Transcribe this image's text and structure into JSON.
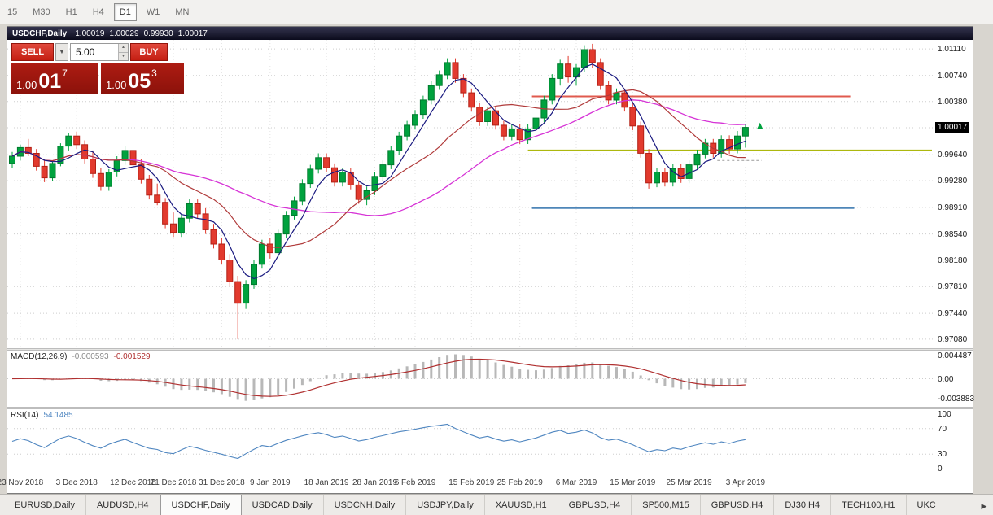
{
  "toolbar": {
    "timeframes": [
      "15",
      "M30",
      "H1",
      "H4",
      "D1",
      "W1",
      "MN"
    ],
    "active": "D1"
  },
  "icons": {
    "chevron_down": "▼",
    "spinner_up": "▲",
    "spinner_down": "▼",
    "scroll_right": "▶"
  },
  "chart_window": {
    "title": "USDCHF,Daily",
    "quote_open": "1.00019",
    "quote_high": "1.00029",
    "quote_low": "0.99930",
    "quote_close": "1.00017"
  },
  "trade_panel": {
    "sell_label": "SELL",
    "buy_label": "BUY",
    "volume": "5.00",
    "bid_base": "1.00",
    "bid_big": "01",
    "bid_sup": "7",
    "ask_base": "1.00",
    "ask_big": "05",
    "ask_sup": "3"
  },
  "macd_panel": {
    "label": "MACD(12,26,9)",
    "value_main": "-0.000593",
    "value_signal": "-0.001529"
  },
  "rsi_panel": {
    "label": "RSI(14)",
    "value": "54.1485"
  },
  "tab_bar": {
    "tabs": [
      "EURUSD,Daily",
      "AUDUSD,H4",
      "USDCHF,Daily",
      "USDCAD,Daily",
      "USDCNH,Daily",
      "USDJPY,Daily",
      "XAUUSD,H1",
      "GBPUSD,H4",
      "SP500,M15",
      "GBPUSD,H4",
      "DJ30,H4",
      "TECH100,H1",
      "UKC"
    ],
    "active_index": 2
  },
  "chart_data": {
    "type": "candlestick",
    "symbol": "USDCHF",
    "timeframe": "Daily",
    "values_are": "open,high,low,close",
    "colors": {
      "up": "#00A23E",
      "up_dark": "#007A2E",
      "down": "#E23A2E",
      "down_dark": "#B22015",
      "grid": "#cdcdcd",
      "macd_hist": "#b8b8b8",
      "macd_signal": "#b03030",
      "rsi": "#4F86C0"
    },
    "y_axis": {
      "min": 0.96955,
      "max": 1.01235,
      "labels": [
        "1.01110",
        "1.00740",
        "1.00380",
        "0.99640",
        "0.99280",
        "0.98910",
        "0.98540",
        "0.98180",
        "0.97810",
        "0.97440",
        "0.97080"
      ],
      "gridlines_extra": [
        1.00015
      ],
      "current_label": "1.00017"
    },
    "x_ticks": [
      {
        "bar": 1,
        "label": "23 Nov 2018"
      },
      {
        "bar": 8,
        "label": "3 Dec 2018"
      },
      {
        "bar": 15,
        "label": "12 Dec 2018"
      },
      {
        "bar": 20,
        "label": "21 Dec 2018"
      },
      {
        "bar": 26,
        "label": "31 Dec 2018"
      },
      {
        "bar": 32,
        "label": "9 Jan 2019"
      },
      {
        "bar": 39,
        "label": "18 Jan 2019"
      },
      {
        "bar": 45,
        "label": "28 Jan 2019"
      },
      {
        "bar": 50,
        "label": "6 Feb 2019"
      },
      {
        "bar": 57,
        "label": "15 Feb 2019"
      },
      {
        "bar": 63,
        "label": "25 Feb 2019"
      },
      {
        "bar": 70,
        "label": "6 Mar 2019"
      },
      {
        "bar": 77,
        "label": "15 Mar 2019"
      },
      {
        "bar": 84,
        "label": "25 Mar 2019"
      },
      {
        "bar": 91,
        "label": "3 Apr 2019"
      }
    ],
    "candles": [
      [
        0.9952,
        0.9968,
        0.9946,
        0.9962
      ],
      [
        0.9962,
        0.9978,
        0.9956,
        0.9974
      ],
      [
        0.9974,
        0.9986,
        0.9962,
        0.9966
      ],
      [
        0.9966,
        0.9972,
        0.9942,
        0.9948
      ],
      [
        0.9948,
        0.9958,
        0.9926,
        0.9932
      ],
      [
        0.9932,
        0.9956,
        0.9928,
        0.9952
      ],
      [
        0.9952,
        0.998,
        0.9948,
        0.9976
      ],
      [
        0.9976,
        0.9994,
        0.997,
        0.999
      ],
      [
        0.999,
        0.9996,
        0.9972,
        0.9978
      ],
      [
        0.9978,
        0.9984,
        0.9952,
        0.9958
      ],
      [
        0.9958,
        0.997,
        0.9932,
        0.9938
      ],
      [
        0.9938,
        0.9946,
        0.9914,
        0.992
      ],
      [
        0.992,
        0.9944,
        0.9914,
        0.994
      ],
      [
        0.994,
        0.9962,
        0.9934,
        0.9956
      ],
      [
        0.9956,
        0.9976,
        0.995,
        0.997
      ],
      [
        0.997,
        0.9976,
        0.9944,
        0.995
      ],
      [
        0.995,
        0.9958,
        0.9924,
        0.993
      ],
      [
        0.993,
        0.9936,
        0.9902,
        0.9908
      ],
      [
        0.9908,
        0.9924,
        0.9894,
        0.9898
      ],
      [
        0.9898,
        0.9904,
        0.9862,
        0.9868
      ],
      [
        0.9868,
        0.9884,
        0.985,
        0.9856
      ],
      [
        0.9856,
        0.9882,
        0.985,
        0.9876
      ],
      [
        0.9876,
        0.9902,
        0.987,
        0.9896
      ],
      [
        0.9896,
        0.9902,
        0.9876,
        0.9882
      ],
      [
        0.9882,
        0.989,
        0.9854,
        0.986
      ],
      [
        0.986,
        0.9868,
        0.9834,
        0.984
      ],
      [
        0.984,
        0.9848,
        0.9812,
        0.9818
      ],
      [
        0.9818,
        0.9826,
        0.9782,
        0.9788
      ],
      [
        0.9788,
        0.9796,
        0.9708,
        0.9758
      ],
      [
        0.9758,
        0.979,
        0.975,
        0.9784
      ],
      [
        0.9784,
        0.9818,
        0.9778,
        0.9812
      ],
      [
        0.9812,
        0.9846,
        0.9806,
        0.984
      ],
      [
        0.984,
        0.9848,
        0.982,
        0.9828
      ],
      [
        0.9828,
        0.986,
        0.9822,
        0.9854
      ],
      [
        0.9854,
        0.9886,
        0.9848,
        0.988
      ],
      [
        0.988,
        0.9906,
        0.9874,
        0.99
      ],
      [
        0.99,
        0.993,
        0.9894,
        0.9924
      ],
      [
        0.9924,
        0.995,
        0.9918,
        0.9944
      ],
      [
        0.9944,
        0.9966,
        0.9938,
        0.996
      ],
      [
        0.996,
        0.9966,
        0.994,
        0.9946
      ],
      [
        0.9946,
        0.9952,
        0.992,
        0.9926
      ],
      [
        0.9926,
        0.9946,
        0.992,
        0.994
      ],
      [
        0.994,
        0.9946,
        0.9916,
        0.9922
      ],
      [
        0.9922,
        0.9928,
        0.9896,
        0.9902
      ],
      [
        0.9902,
        0.992,
        0.9894,
        0.9914
      ],
      [
        0.9914,
        0.994,
        0.9908,
        0.9934
      ],
      [
        0.9934,
        0.9956,
        0.9928,
        0.995
      ],
      [
        0.995,
        0.9976,
        0.9944,
        0.997
      ],
      [
        0.997,
        0.9996,
        0.9964,
        0.999
      ],
      [
        0.999,
        1.0011,
        0.9984,
        1.0005
      ],
      [
        1.0005,
        1.0026,
        0.9999,
        1.002
      ],
      [
        1.002,
        1.0046,
        1.0014,
        1.004
      ],
      [
        1.004,
        1.0066,
        1.0034,
        1.006
      ],
      [
        1.006,
        1.0081,
        1.0054,
        1.0075
      ],
      [
        1.0075,
        1.0098,
        1.0069,
        1.0092
      ],
      [
        1.0092,
        1.0098,
        1.0064,
        1.007
      ],
      [
        1.007,
        1.0076,
        1.0044,
        1.005
      ],
      [
        1.005,
        1.0056,
        1.0024,
        1.003
      ],
      [
        1.003,
        1.0036,
        1.0004,
        1.001
      ],
      [
        1.001,
        1.0031,
        1.0004,
        1.0025
      ],
      [
        1.0025,
        1.0031,
        0.9999,
        1.0005
      ],
      [
        1.0005,
        1.0011,
        0.9984,
        0.999
      ],
      [
        0.999,
        1.0006,
        0.9984,
        1.0
      ],
      [
        1.0,
        1.0006,
        0.9979,
        0.9985
      ],
      [
        0.9985,
        1.0006,
        0.9979,
        1.0
      ],
      [
        1.0,
        1.0021,
        0.9994,
        1.0015
      ],
      [
        1.0015,
        1.0046,
        1.0009,
        1.004
      ],
      [
        1.004,
        1.0076,
        1.0034,
        1.007
      ],
      [
        1.007,
        1.0096,
        1.006,
        1.009
      ],
      [
        1.009,
        1.0101,
        1.0064,
        1.0072
      ],
      [
        1.0072,
        1.009,
        1.006,
        1.0085
      ],
      [
        1.0085,
        1.0116,
        1.0079,
        1.011
      ],
      [
        1.011,
        1.0118,
        1.0085,
        1.0092
      ],
      [
        1.0092,
        1.0098,
        1.0054,
        1.006
      ],
      [
        1.006,
        1.0066,
        1.0034,
        1.004
      ],
      [
        1.004,
        1.0056,
        1.0034,
        1.005
      ],
      [
        1.005,
        1.0056,
        1.0024,
        1.003
      ],
      [
        1.003,
        1.0036,
        0.9998,
        1.0004
      ],
      [
        1.0004,
        1.001,
        0.996,
        0.9966
      ],
      [
        0.9966,
        0.9972,
        0.9917,
        0.9925
      ],
      [
        0.9925,
        0.9946,
        0.9919,
        0.994
      ],
      [
        0.994,
        0.9946,
        0.992,
        0.9926
      ],
      [
        0.9926,
        0.9951,
        0.992,
        0.9945
      ],
      [
        0.9945,
        0.9951,
        0.9925,
        0.9931
      ],
      [
        0.9931,
        0.9956,
        0.9925,
        0.995
      ],
      [
        0.995,
        0.9971,
        0.9944,
        0.9965
      ],
      [
        0.9965,
        0.9986,
        0.9959,
        0.998
      ],
      [
        0.998,
        0.9986,
        0.996,
        0.9966
      ],
      [
        0.9966,
        0.9991,
        0.996,
        0.9985
      ],
      [
        0.9985,
        0.9991,
        0.9965,
        0.9972
      ],
      [
        0.9972,
        0.9997,
        0.9966,
        0.999
      ],
      [
        0.999,
        1.0007,
        0.9974,
        1.0002
      ]
    ],
    "overlays": {
      "ma_fast": {
        "period": 5,
        "color": "#1A1A80"
      },
      "ma_mid": {
        "period": 14,
        "color": "#B03A3A"
      },
      "ma_slow": {
        "period": 30,
        "color": "#D633D6"
      }
    },
    "hlines": [
      {
        "price": 1.0045,
        "color": "#E05A4E",
        "width": 2,
        "from_bar": 64.5,
        "to_bar": 104
      },
      {
        "price": 0.997,
        "color": "#ADB80E",
        "width": 2,
        "from_bar": 64.0,
        "to_bar": 115
      },
      {
        "price": 0.989,
        "color": "#4E86B8",
        "width": 2,
        "from_bar": 64.5,
        "to_bar": 104.5
      },
      {
        "price": 0.9956,
        "color": "#9A9A9A",
        "width": 1,
        "from_bar": 87.5,
        "to_bar": 93,
        "dash": "3,3"
      }
    ],
    "markers": [
      {
        "bar": 92.8,
        "price": 1.0004,
        "type": "arrow-up",
        "color": "#00A23E"
      }
    ],
    "macd": {
      "fast": 12,
      "slow": 26,
      "signal": 9,
      "scale_labels": [
        "0.004487",
        "0.00",
        "-0.003883"
      ]
    },
    "rsi": {
      "period": 14,
      "levels": [
        70,
        30
      ],
      "scale_labels": [
        "100",
        "70",
        "30",
        "0"
      ]
    }
  }
}
